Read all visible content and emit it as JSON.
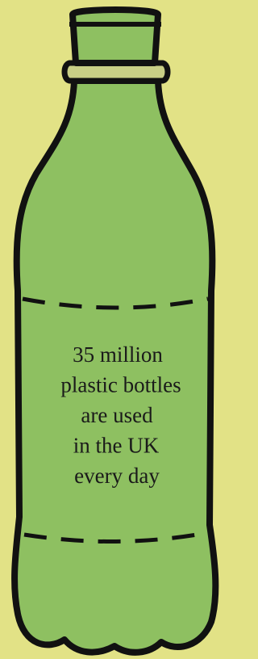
{
  "caption": {
    "lines": [
      "35 million",
      "plastic bottles",
      "are used",
      "in the UK",
      "every day"
    ]
  }
}
